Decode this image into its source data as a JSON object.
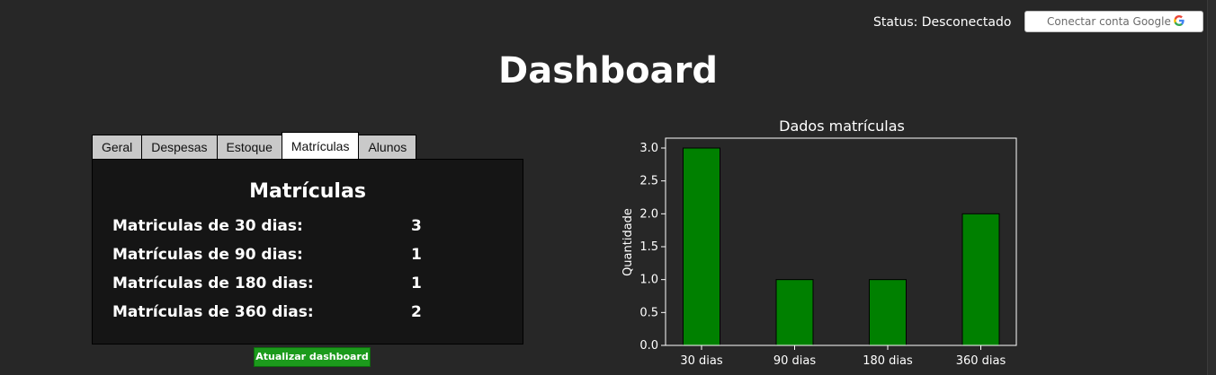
{
  "header": {
    "status_text": "Status: Desconectado",
    "google_button_label": "Conectar conta Google",
    "google_logo": "G"
  },
  "title": "Dashboard",
  "tabs": [
    {
      "label": "Geral",
      "active": false
    },
    {
      "label": "Despesas",
      "active": false
    },
    {
      "label": "Estoque",
      "active": false
    },
    {
      "label": "Matrículas",
      "active": true
    },
    {
      "label": "Alunos",
      "active": false
    }
  ],
  "panel": {
    "title": "Matrículas",
    "rows": [
      {
        "label": "Matriculas de 30 dias:",
        "value": "3"
      },
      {
        "label": "Matrículas de 90 dias:",
        "value": "1"
      },
      {
        "label": "Matrículas de 180 dias:",
        "value": "1"
      },
      {
        "label": "Matrículas de 360 dias:",
        "value": "2"
      }
    ]
  },
  "refresh_button_label": "Atualizar dashboard",
  "colors": {
    "bar": "#008000",
    "refresh": "#1c9a1c"
  },
  "chart_data": {
    "type": "bar",
    "title": "Dados matrículas",
    "xlabel": "",
    "ylabel": "Quantidade",
    "categories": [
      "30 dias",
      "90 dias",
      "180 dias",
      "360 dias"
    ],
    "values": [
      3,
      1,
      1,
      2
    ],
    "ylim": [
      0,
      3.0
    ],
    "yticks": [
      "0.0",
      "0.5",
      "1.0",
      "1.5",
      "2.0",
      "2.5",
      "3.0"
    ],
    "grid": false
  }
}
